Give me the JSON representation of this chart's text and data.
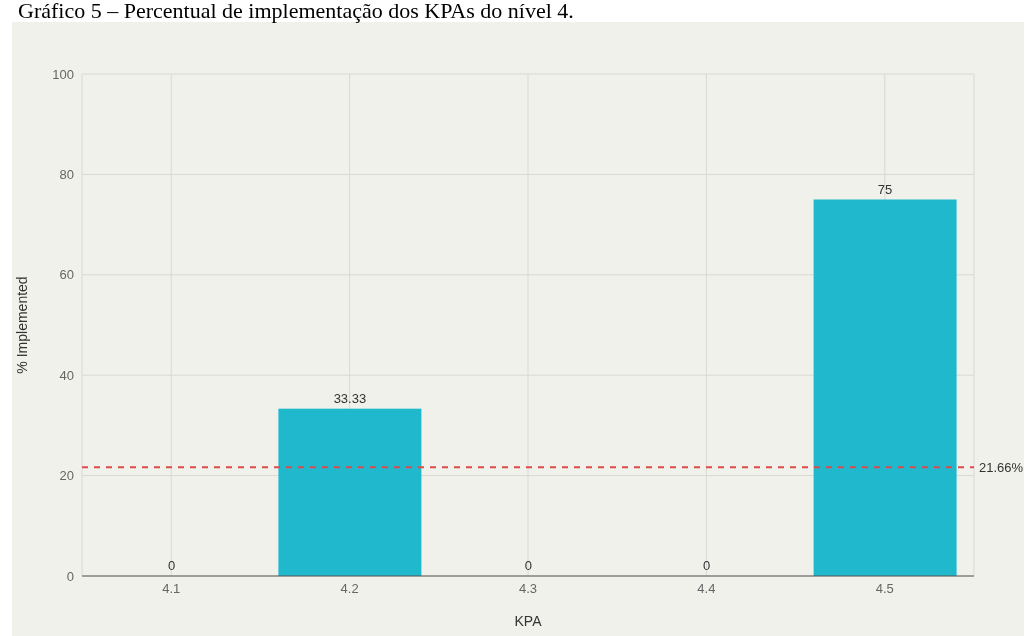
{
  "chart_data": {
    "type": "bar",
    "title": "Gráfico 5 – Percentual de implementação dos KPAs do nível 4.",
    "xlabel": "KPA",
    "ylabel": "% Implemented",
    "categories": [
      "4.1",
      "4.2",
      "4.3",
      "4.4",
      "4.5"
    ],
    "values": [
      0,
      33.33,
      0,
      0,
      75
    ],
    "color": "#1fb8cd",
    "ylim": [
      0,
      100
    ],
    "yticks": [
      0,
      20,
      40,
      60,
      80,
      100
    ],
    "grid": true,
    "data_labels": true,
    "ref_lines": [
      {
        "axis": "y",
        "value": 21.66,
        "label": "21.66%",
        "color": "#dd4b4b",
        "line_style": "dashed"
      }
    ]
  }
}
